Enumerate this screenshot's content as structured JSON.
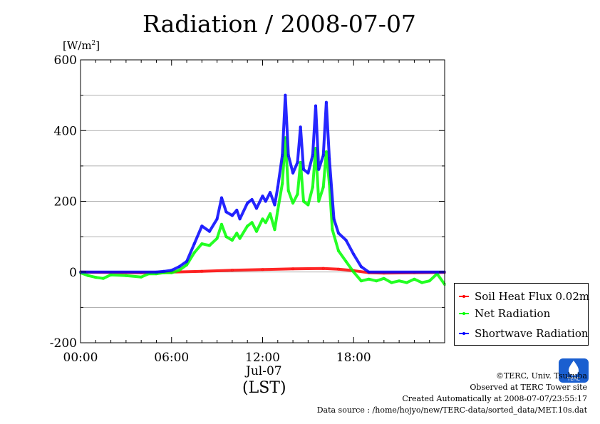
{
  "title": "Radiation / 2008-07-07",
  "unit_label": {
    "main": "[W/m",
    "sup": "2",
    "close": "]"
  },
  "x_date_label": "Jul-07",
  "x_axis_label": "(LST)",
  "legend": [
    {
      "name": "Soil Heat Flux 0.02m",
      "color": "#ff0000"
    },
    {
      "name": "Net Radiation",
      "color": "#00ff00"
    },
    {
      "name": "Shortwave Radiation",
      "color": "#0000ff"
    }
  ],
  "credits": {
    "copyright": "©TERC, Univ. Tsukuba",
    "observed": "Observed at TERC Tower site",
    "created": "Created Automatically at 2008-07-07/23:55:17",
    "source": "Data source : /home/hojyo/new/TERC-data/sorted_data/MET.10s.dat"
  },
  "logo_text": "TERC",
  "colors": {
    "axis": "#000000",
    "grid": "#999999"
  },
  "chart_data": {
    "type": "line",
    "title": "Radiation / 2008-07-07",
    "xlabel": "(LST)",
    "ylabel": "[W/m2]",
    "xlim": [
      0,
      24
    ],
    "ylim": [
      -200,
      600
    ],
    "x_ticks": [
      0,
      6,
      12,
      18
    ],
    "x_tick_labels": [
      "00:00",
      "06:00",
      "12:00",
      "18:00"
    ],
    "y_ticks": [
      -200,
      0,
      200,
      400,
      600
    ],
    "y_tick_labels": [
      "-200",
      "0",
      "200",
      "400",
      "600"
    ],
    "grid": true,
    "legend_position": "right-lower",
    "series": [
      {
        "name": "Soil Heat Flux 0.02m",
        "color": "#ff0000",
        "points": [
          [
            0,
            0
          ],
          [
            4,
            -2
          ],
          [
            6,
            0
          ],
          [
            8,
            2
          ],
          [
            10,
            5
          ],
          [
            12,
            7
          ],
          [
            14,
            9
          ],
          [
            16,
            10
          ],
          [
            17,
            8
          ],
          [
            18,
            4
          ],
          [
            19,
            -2
          ],
          [
            20,
            -3
          ],
          [
            22,
            -2
          ],
          [
            24,
            -1
          ]
        ]
      },
      {
        "name": "Net Radiation",
        "color": "#00ff00",
        "points": [
          [
            0,
            -2
          ],
          [
            0.5,
            -10
          ],
          [
            1,
            -15
          ],
          [
            1.5,
            -18
          ],
          [
            2,
            -8
          ],
          [
            3,
            -10
          ],
          [
            4,
            -14
          ],
          [
            4.5,
            -5
          ],
          [
            5,
            -5
          ],
          [
            5.5,
            -2
          ],
          [
            6,
            -2
          ],
          [
            6.5,
            5
          ],
          [
            7,
            20
          ],
          [
            7.5,
            55
          ],
          [
            8,
            80
          ],
          [
            8.5,
            75
          ],
          [
            9,
            95
          ],
          [
            9.3,
            135
          ],
          [
            9.6,
            100
          ],
          [
            10,
            90
          ],
          [
            10.3,
            110
          ],
          [
            10.5,
            95
          ],
          [
            11,
            130
          ],
          [
            11.3,
            140
          ],
          [
            11.6,
            115
          ],
          [
            12,
            150
          ],
          [
            12.2,
            140
          ],
          [
            12.5,
            165
          ],
          [
            12.8,
            120
          ],
          [
            13,
            175
          ],
          [
            13.3,
            250
          ],
          [
            13.5,
            380
          ],
          [
            13.7,
            230
          ],
          [
            14,
            195
          ],
          [
            14.3,
            220
          ],
          [
            14.5,
            310
          ],
          [
            14.7,
            200
          ],
          [
            15,
            190
          ],
          [
            15.3,
            240
          ],
          [
            15.5,
            350
          ],
          [
            15.7,
            200
          ],
          [
            16,
            240
          ],
          [
            16.2,
            340
          ],
          [
            16.4,
            250
          ],
          [
            16.6,
            120
          ],
          [
            17,
            60
          ],
          [
            17.5,
            30
          ],
          [
            18,
            0
          ],
          [
            18.5,
            -25
          ],
          [
            19,
            -20
          ],
          [
            19.5,
            -25
          ],
          [
            20,
            -18
          ],
          [
            20.5,
            -30
          ],
          [
            21,
            -25
          ],
          [
            21.5,
            -30
          ],
          [
            22,
            -20
          ],
          [
            22.5,
            -30
          ],
          [
            23,
            -25
          ],
          [
            23.5,
            -5
          ],
          [
            24,
            -35
          ]
        ]
      },
      {
        "name": "Shortwave Radiation",
        "color": "#0000ff",
        "points": [
          [
            0,
            0
          ],
          [
            5,
            0
          ],
          [
            5.5,
            2
          ],
          [
            6,
            5
          ],
          [
            6.5,
            15
          ],
          [
            7,
            30
          ],
          [
            7.5,
            80
          ],
          [
            8,
            130
          ],
          [
            8.5,
            115
          ],
          [
            9,
            150
          ],
          [
            9.3,
            210
          ],
          [
            9.6,
            170
          ],
          [
            10,
            160
          ],
          [
            10.3,
            175
          ],
          [
            10.5,
            150
          ],
          [
            11,
            195
          ],
          [
            11.3,
            205
          ],
          [
            11.6,
            180
          ],
          [
            12,
            215
          ],
          [
            12.2,
            200
          ],
          [
            12.5,
            225
          ],
          [
            12.8,
            190
          ],
          [
            13,
            240
          ],
          [
            13.3,
            330
          ],
          [
            13.5,
            500
          ],
          [
            13.7,
            330
          ],
          [
            14,
            280
          ],
          [
            14.3,
            310
          ],
          [
            14.5,
            410
          ],
          [
            14.7,
            290
          ],
          [
            15,
            280
          ],
          [
            15.3,
            330
          ],
          [
            15.5,
            470
          ],
          [
            15.7,
            290
          ],
          [
            16,
            330
          ],
          [
            16.2,
            480
          ],
          [
            16.4,
            320
          ],
          [
            16.7,
            150
          ],
          [
            17,
            110
          ],
          [
            17.5,
            90
          ],
          [
            18,
            50
          ],
          [
            18.5,
            15
          ],
          [
            19,
            0
          ],
          [
            24,
            0
          ]
        ]
      }
    ]
  }
}
